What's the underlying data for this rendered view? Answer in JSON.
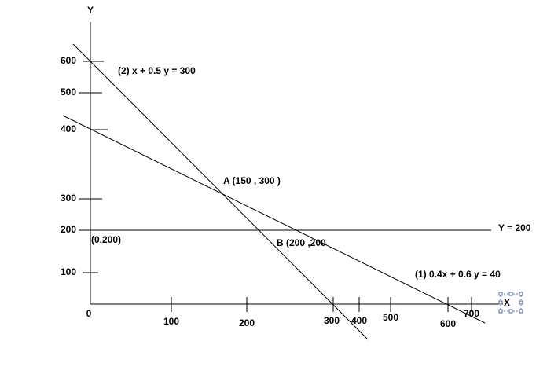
{
  "axes": {
    "y_label": "Y",
    "x_label": "X",
    "origin": "0",
    "y_ticks": [
      "600",
      "500",
      "400",
      "300",
      "200",
      "100"
    ],
    "x_ticks": [
      "100",
      "200",
      "300",
      "400",
      "500",
      "600",
      "700"
    ]
  },
  "lines": [
    {
      "label": "(2) x + 0.5 y = 300"
    },
    {
      "label": "(1) 0.4x + 0.6 y = 40"
    },
    {
      "label": "Y = 200"
    }
  ],
  "points": [
    {
      "label": "A (150 , 300 )"
    },
    {
      "label": "(0,200)"
    },
    {
      "label": "B (200 ,200"
    }
  ]
}
